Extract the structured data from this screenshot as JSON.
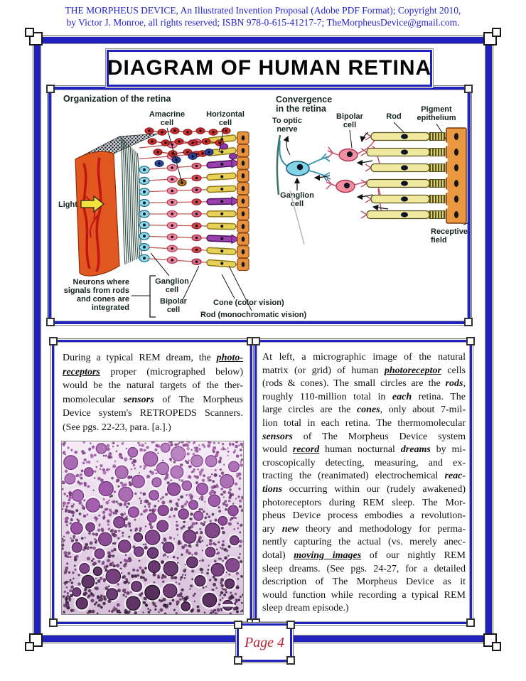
{
  "colors": {
    "frame_blue": "#2121bd",
    "header_blue": "#2323cc",
    "page_number_red": "#bb2233",
    "label_dark": "#15241d"
  },
  "header": {
    "line1": "THE MORPHEUS DEVICE, An Illustrated Invention Proposal (Adobe PDF Format); Copyright 2010,",
    "line2": "by Victor J. Monroe, all rights reserved; ISBN 978-0-615-41217-7; TheMorpheusDevice@gmail.com."
  },
  "title": "DIAGRAM OF HUMAN RETINA",
  "diagram": {
    "organization": {
      "heading": "Organization of the retina",
      "amacrine_label": "Amacrine\ncell",
      "horizontal_label": "Horizontal\ncell",
      "light_label": "Light",
      "neurons_label": "Neurons where\nsignals from rods\nand cones are\nintegrated",
      "ganglion_label": "Ganglion\ncell",
      "bipolar_label": "Bipolar\ncell",
      "cone_label": "Cone (color vision)",
      "rod_label": "Rod (monochromatic vision)"
    },
    "convergence": {
      "heading": "Convergence\nin the retina",
      "optic_nerve_label": "To optic\nnerve",
      "bipolar_label": "Bipolar\ncell",
      "rod_label": "Rod",
      "pigment_label": "Pigment\nepithelium",
      "ganglion_label": "Ganglion\ncell",
      "receptive_label": "Receptive\nfield"
    }
  },
  "left_column": {
    "lines": [
      {
        "segs": [
          {
            "t": "During a typical REM dream, the "
          },
          {
            "t": "photo-",
            "s": "biu"
          }
        ]
      },
      {
        "segs": [
          {
            "t": "receptors",
            "s": "biu"
          },
          {
            "t": " proper (micrographed below)"
          }
        ]
      },
      {
        "segs": [
          {
            "t": "would be the natural targets of the ther-"
          }
        ]
      },
      {
        "segs": [
          {
            "t": "momolecular "
          },
          {
            "t": "sensors",
            "s": "bi"
          },
          {
            "t": " of The Morpheus"
          }
        ]
      },
      {
        "segs": [
          {
            "t": "Device system's RETROPEDS Scanners."
          }
        ]
      },
      {
        "segs": [
          {
            "t": "(See pgs. 22-23, para. [a.].)"
          }
        ],
        "last": true
      }
    ]
  },
  "right_column": {
    "lines": [
      {
        "segs": [
          {
            "t": "At left, a micrographic image of the natural"
          }
        ]
      },
      {
        "segs": [
          {
            "t": "matrix (or grid) of human "
          },
          {
            "t": "photoreceptor",
            "s": "biu"
          },
          {
            "t": " cells"
          }
        ]
      },
      {
        "segs": [
          {
            "t": "(rods & cones).  The small circles are the "
          },
          {
            "t": "rods",
            "s": "bi"
          },
          {
            "t": ","
          }
        ]
      },
      {
        "segs": [
          {
            "t": "roughly 110-million total in "
          },
          {
            "t": "each",
            "s": "bi"
          },
          {
            "t": " retina. The"
          }
        ]
      },
      {
        "segs": [
          {
            "t": "large circles are the "
          },
          {
            "t": "cones",
            "s": "bi"
          },
          {
            "t": ", only about 7-mil-"
          }
        ]
      },
      {
        "segs": [
          {
            "t": "lion total in each retina. The thermomolecular"
          }
        ]
      },
      {
        "segs": [
          {
            "t": "sensors",
            "s": "bi"
          },
          {
            "t": " of The Morpheus Device system"
          }
        ]
      },
      {
        "segs": [
          {
            "t": "would "
          },
          {
            "t": "record",
            "s": "biu"
          },
          {
            "t": " human nocturnal "
          },
          {
            "t": "dreams",
            "s": "bi"
          },
          {
            "t": " by mi-"
          }
        ]
      },
      {
        "segs": [
          {
            "t": "croscopically detecting, measuring, and ex-"
          }
        ]
      },
      {
        "segs": [
          {
            "t": "tracting the (reanimated) electrochemical "
          },
          {
            "t": "reac-",
            "s": "bi"
          }
        ]
      },
      {
        "segs": [
          {
            "t": "tions",
            "s": "bi"
          },
          {
            "t": " occurring within our (rudely awakened)"
          }
        ]
      },
      {
        "segs": [
          {
            "t": "photoreceptors during REM sleep. The Mor-"
          }
        ]
      },
      {
        "segs": [
          {
            "t": "pheus Device process embodies a revolution-"
          }
        ]
      },
      {
        "segs": [
          {
            "t": "ary "
          },
          {
            "t": "new",
            "s": "bi"
          },
          {
            "t": " theory and methodology for perma-"
          }
        ]
      },
      {
        "segs": [
          {
            "t": "nently capturing the actual (vs. merely anec-"
          }
        ]
      },
      {
        "segs": [
          {
            "t": "dotal) "
          },
          {
            "t": "moving images",
            "s": "biu"
          },
          {
            "t": " of our nightly REM"
          }
        ]
      },
      {
        "segs": [
          {
            "t": "sleep dreams. (See pgs. 24-27, for a detailed"
          }
        ]
      },
      {
        "segs": [
          {
            "t": "description of The Morpheus Device as it"
          }
        ]
      },
      {
        "segs": [
          {
            "t": "would function while recording a typical REM"
          }
        ]
      },
      {
        "segs": [
          {
            "t": "sleep dream episode.)"
          }
        ],
        "last": true
      }
    ]
  },
  "micrograph": {
    "bg_top": "#f5ecf6",
    "bg_bottom": "#d6bed9",
    "ring": "#f7f0f8"
  },
  "footer": {
    "page_label": "Page 4"
  }
}
